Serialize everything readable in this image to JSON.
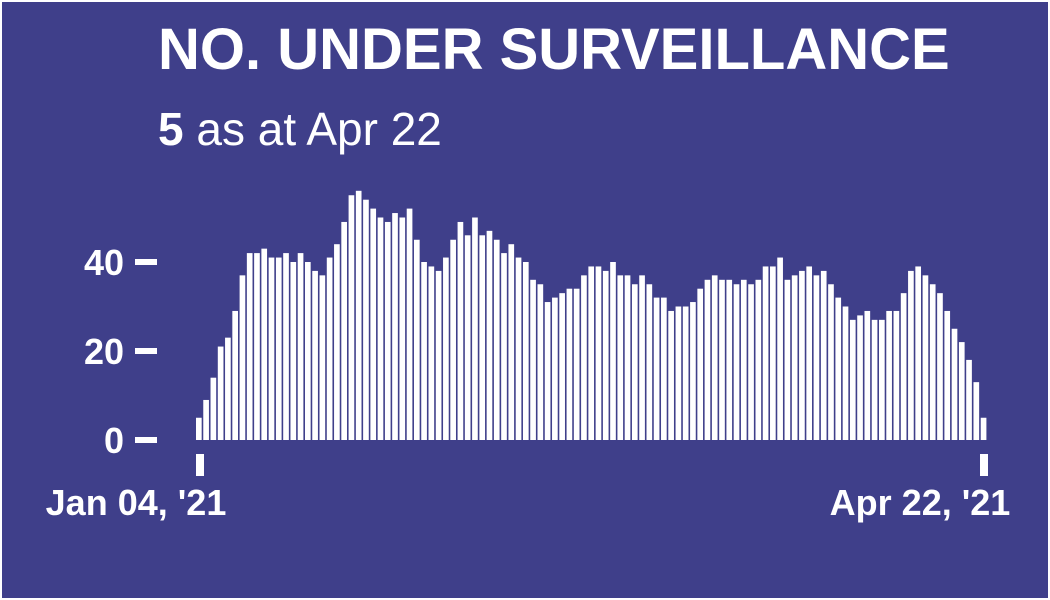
{
  "title": "NO. UNDER SURVEILLANCE",
  "subtitle": {
    "value": "5",
    "text": "as at Apr 22"
  },
  "colors": {
    "background": "#3f3f8a",
    "bar": "#ffffff"
  },
  "chart_data": {
    "type": "bar",
    "title": "NO. UNDER SURVEILLANCE",
    "xlabel": "",
    "ylabel": "",
    "ylim": [
      0,
      60
    ],
    "yticks": [
      0,
      20,
      40
    ],
    "x_first_label": "Jan 04, '21",
    "x_last_label": "Apr 22, '21",
    "x_start": "2021-01-04",
    "x_end": "2021-04-22",
    "grid": false,
    "legend": "none",
    "values": [
      5,
      9,
      14,
      21,
      23,
      29,
      37,
      42,
      42,
      43,
      41,
      41,
      42,
      40,
      42,
      40,
      38,
      37,
      41,
      44,
      49,
      55,
      56,
      54,
      52,
      50,
      49,
      51,
      50,
      52,
      45,
      40,
      39,
      38,
      41,
      45,
      49,
      46,
      50,
      46,
      47,
      45,
      42,
      44,
      41,
      40,
      36,
      35,
      31,
      32,
      33,
      34,
      34,
      37,
      39,
      39,
      38,
      40,
      37,
      37,
      35,
      37,
      35,
      32,
      32,
      29,
      30,
      30,
      31,
      34,
      36,
      37,
      36,
      36,
      35,
      36,
      35,
      36,
      39,
      39,
      41,
      36,
      37,
      38,
      39,
      37,
      38,
      35,
      32,
      30,
      27,
      28,
      29,
      27,
      27,
      29,
      29,
      33,
      38,
      39,
      37,
      35,
      33,
      29,
      25,
      22,
      18,
      13,
      5
    ]
  }
}
